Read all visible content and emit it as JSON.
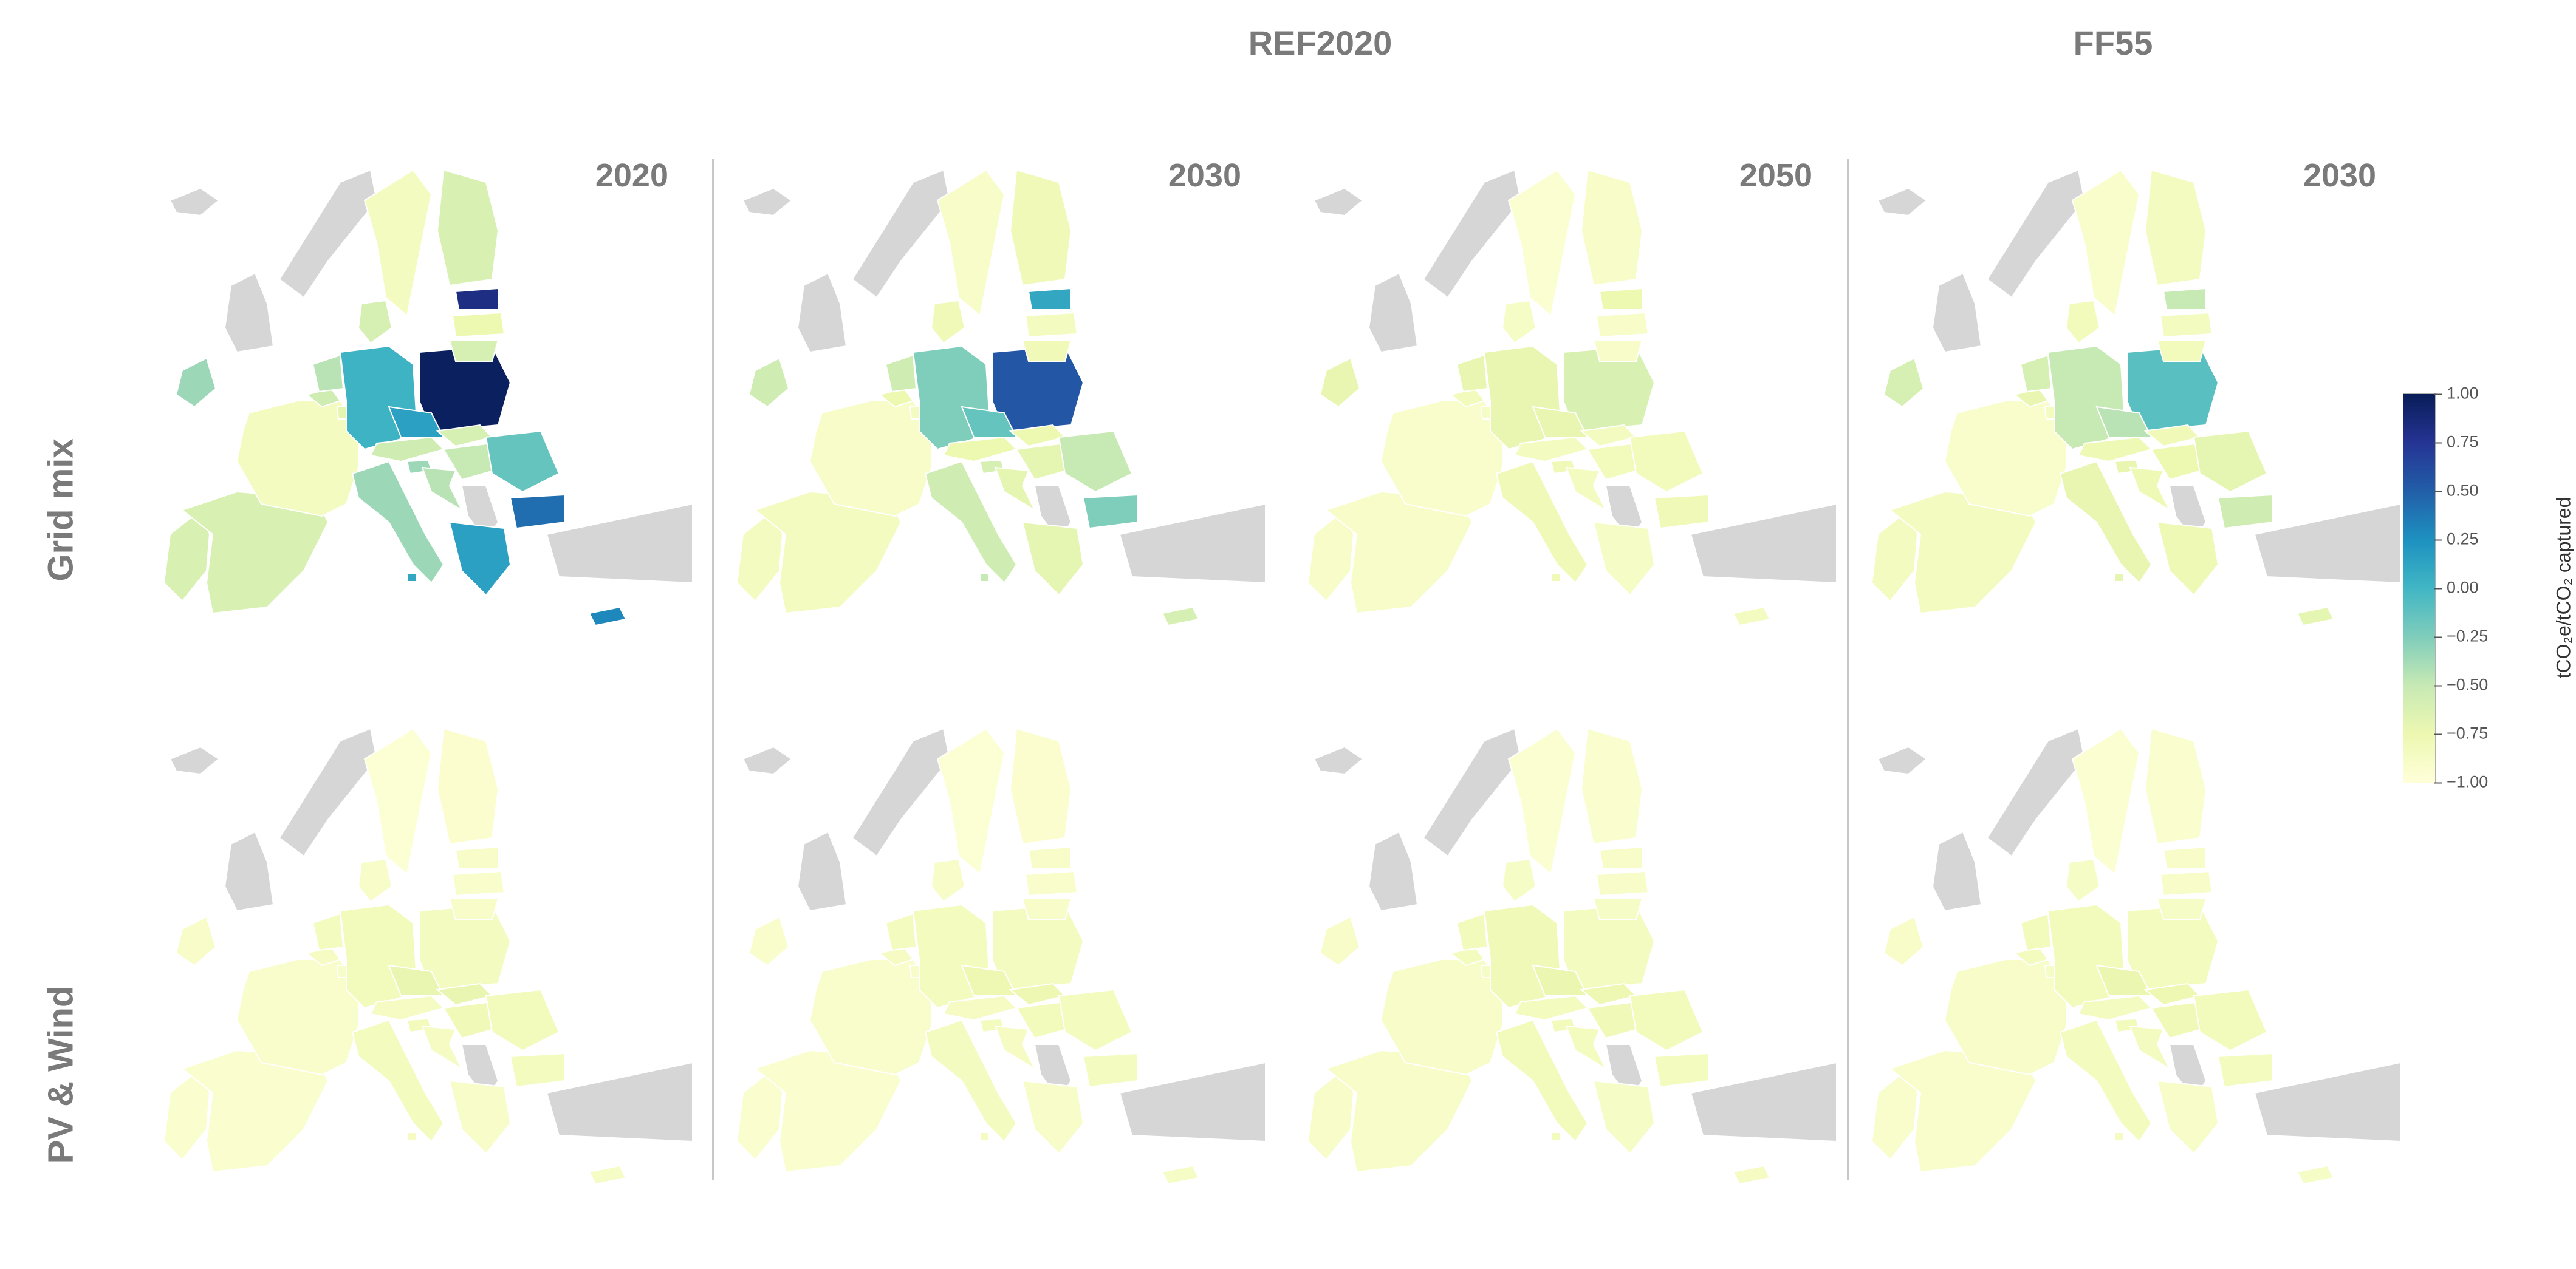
{
  "scenario_titles": {
    "ref2020": "REF2020",
    "ff55": "FF55"
  },
  "row_labels": {
    "grid": "Grid mix",
    "pvwind": "PV & Wind"
  },
  "colorbar": {
    "label": "tCO₂e/tCO₂ captured",
    "ticks": [
      "1.00",
      "0.75",
      "0.50",
      "0.25",
      "0.00",
      "−0.25",
      "−0.50",
      "−0.75",
      "−1.00"
    ],
    "range": [
      -1.0,
      1.0
    ],
    "colormap": "YlGnBu"
  },
  "colors": {
    "no_data": "#d6d6d6",
    "title_gray": "#7a7a7a"
  },
  "panels": [
    {
      "row": "grid",
      "scenario": "REF2020",
      "year": "2020",
      "values": {
        "PT": -0.62,
        "ES": -0.62,
        "FR": -0.85,
        "BE": -0.55,
        "NL": -0.45,
        "LU": -0.7,
        "DE": 0.02,
        "DK": -0.6,
        "IE": -0.35,
        "AT": -0.55,
        "IT": -0.35,
        "SI": -0.35,
        "HR": -0.45,
        "PL": 0.97,
        "CZ": 0.15,
        "SK": -0.6,
        "HU": -0.5,
        "RO": -0.15,
        "BG": 0.42,
        "GR": 0.15,
        "CY": 0.3,
        "SE": -0.85,
        "FI": -0.62,
        "EE": 0.82,
        "LV": -0.75,
        "LT": -0.6,
        "MT": 0.1
      }
    },
    {
      "row": "grid",
      "scenario": "REF2020",
      "year": "2030",
      "values": {
        "PT": -0.85,
        "ES": -0.85,
        "FR": -0.9,
        "BE": -0.75,
        "NL": -0.55,
        "LU": -0.85,
        "DE": -0.25,
        "DK": -0.8,
        "IE": -0.55,
        "AT": -0.75,
        "IT": -0.55,
        "SI": -0.6,
        "HR": -0.7,
        "PL": 0.55,
        "CZ": -0.15,
        "SK": -0.75,
        "HU": -0.7,
        "RO": -0.5,
        "BG": -0.25,
        "GR": -0.7,
        "CY": -0.6,
        "SE": -0.9,
        "FI": -0.8,
        "EE": 0.1,
        "LV": -0.85,
        "LT": -0.8,
        "MT": -0.5
      }
    },
    {
      "row": "grid",
      "scenario": "REF2020",
      "year": "2050",
      "values": {
        "PT": -0.9,
        "ES": -0.9,
        "FR": -0.92,
        "BE": -0.82,
        "NL": -0.72,
        "LU": -0.88,
        "DE": -0.72,
        "DK": -0.88,
        "IE": -0.72,
        "AT": -0.85,
        "IT": -0.8,
        "SI": -0.8,
        "HR": -0.85,
        "PL": -0.62,
        "CZ": -0.72,
        "SK": -0.85,
        "HU": -0.82,
        "RO": -0.82,
        "BG": -0.8,
        "GR": -0.88,
        "CY": -0.85,
        "SE": -0.95,
        "FI": -0.9,
        "EE": -0.75,
        "LV": -0.9,
        "LT": -0.9,
        "MT": -0.8
      }
    },
    {
      "row": "grid",
      "scenario": "FF55",
      "year": "2030",
      "values": {
        "PT": -0.85,
        "ES": -0.85,
        "FR": -0.92,
        "BE": -0.72,
        "NL": -0.6,
        "LU": -0.85,
        "DE": -0.5,
        "DK": -0.82,
        "IE": -0.6,
        "AT": -0.78,
        "IT": -0.72,
        "SI": -0.72,
        "HR": -0.78,
        "PL": -0.1,
        "CZ": -0.45,
        "SK": -0.8,
        "HU": -0.75,
        "RO": -0.7,
        "BG": -0.55,
        "GR": -0.78,
        "CY": -0.7,
        "SE": -0.92,
        "FI": -0.85,
        "EE": -0.5,
        "LV": -0.85,
        "LT": -0.82,
        "MT": -0.7
      }
    },
    {
      "row": "pvwind",
      "scenario": "REF2020",
      "year": "2020",
      "values": {
        "PT": -0.93,
        "ES": -0.93,
        "FR": -0.92,
        "BE": -0.86,
        "NL": -0.84,
        "LU": -0.9,
        "DE": -0.82,
        "DK": -0.9,
        "IE": -0.9,
        "AT": -0.86,
        "IT": -0.84,
        "SI": -0.82,
        "HR": -0.86,
        "PL": -0.85,
        "CZ": -0.72,
        "SK": -0.72,
        "HU": -0.8,
        "RO": -0.82,
        "BG": -0.84,
        "GR": -0.9,
        "CY": -0.88,
        "SE": -0.96,
        "FI": -0.94,
        "EE": -0.9,
        "LV": -0.92,
        "LT": -0.9,
        "MT": -0.86
      }
    },
    {
      "row": "pvwind",
      "scenario": "REF2020",
      "year": "2030",
      "values": {
        "PT": -0.93,
        "ES": -0.93,
        "FR": -0.92,
        "BE": -0.86,
        "NL": -0.84,
        "LU": -0.9,
        "DE": -0.84,
        "DK": -0.9,
        "IE": -0.92,
        "AT": -0.86,
        "IT": -0.85,
        "SI": -0.84,
        "HR": -0.86,
        "PL": -0.85,
        "CZ": -0.76,
        "SK": -0.76,
        "HU": -0.82,
        "RO": -0.84,
        "BG": -0.85,
        "GR": -0.9,
        "CY": -0.88,
        "SE": -0.96,
        "FI": -0.94,
        "EE": -0.9,
        "LV": -0.92,
        "LT": -0.9,
        "MT": -0.86
      }
    },
    {
      "row": "pvwind",
      "scenario": "REF2020",
      "year": "2050",
      "values": {
        "PT": -0.9,
        "ES": -0.9,
        "FR": -0.9,
        "BE": -0.84,
        "NL": -0.82,
        "LU": -0.88,
        "DE": -0.8,
        "DK": -0.88,
        "IE": -0.9,
        "AT": -0.84,
        "IT": -0.82,
        "SI": -0.82,
        "HR": -0.84,
        "PL": -0.85,
        "CZ": -0.74,
        "SK": -0.76,
        "HU": -0.8,
        "RO": -0.82,
        "BG": -0.84,
        "GR": -0.88,
        "CY": -0.86,
        "SE": -0.95,
        "FI": -0.93,
        "EE": -0.9,
        "LV": -0.9,
        "LT": -0.88,
        "MT": -0.84
      }
    },
    {
      "row": "pvwind",
      "scenario": "FF55",
      "year": "2030",
      "values": {
        "PT": -0.92,
        "ES": -0.92,
        "FR": -0.9,
        "BE": -0.84,
        "NL": -0.82,
        "LU": -0.88,
        "DE": -0.82,
        "DK": -0.88,
        "IE": -0.9,
        "AT": -0.85,
        "IT": -0.84,
        "SI": -0.82,
        "HR": -0.85,
        "PL": -0.84,
        "CZ": -0.74,
        "SK": -0.76,
        "HU": -0.8,
        "RO": -0.82,
        "BG": -0.84,
        "GR": -0.9,
        "CY": -0.88,
        "SE": -0.95,
        "FI": -0.93,
        "EE": -0.9,
        "LV": -0.9,
        "LT": -0.88,
        "MT": -0.86
      }
    }
  ]
}
